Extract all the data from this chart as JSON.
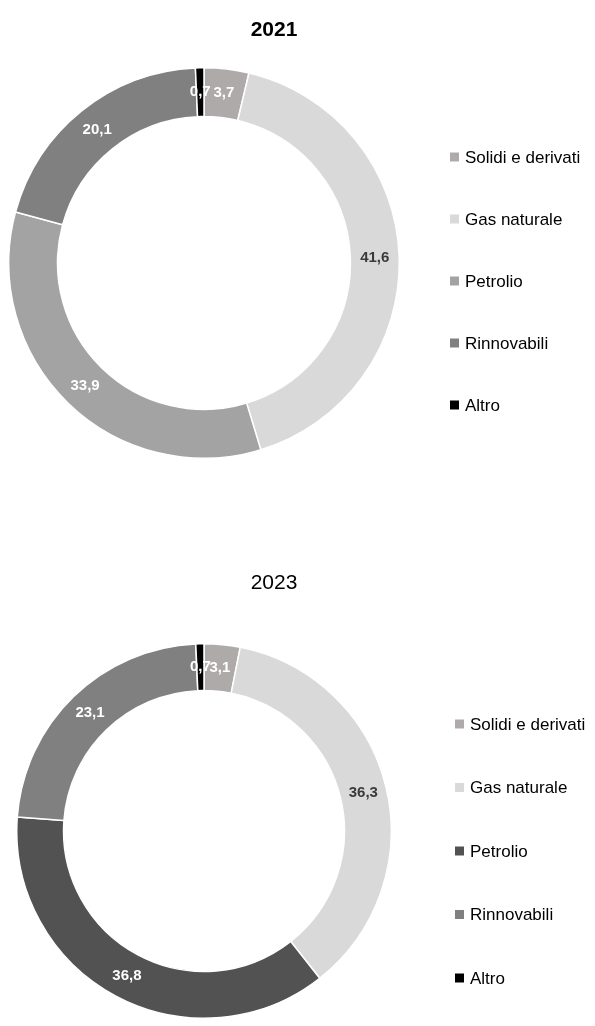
{
  "chart_data": [
    {
      "type": "donut",
      "title": "2021",
      "categories": [
        "Solidi e derivati",
        "Gas naturale",
        "Petrolio",
        "Rinnovabili",
        "Altro"
      ],
      "values": [
        3.7,
        41.6,
        33.9,
        20.1,
        0.7
      ],
      "colors": [
        "#aeaaaa",
        "#d9d9d9",
        "#a3a3a3",
        "#808080",
        "#000000"
      ],
      "value_labels": [
        "3,7",
        "41,6",
        "33,9",
        "20,1",
        "0,7"
      ],
      "legend": "right"
    },
    {
      "type": "donut",
      "title": "2023",
      "categories": [
        "Solidi e derivati",
        "Gas naturale",
        "Petrolio",
        "Rinnovabili",
        "Altro"
      ],
      "values": [
        3.1,
        36.3,
        36.8,
        23.1,
        0.7
      ],
      "colors": [
        "#aeaaaa",
        "#d9d9d9",
        "#525252",
        "#808080",
        "#000000"
      ],
      "value_labels": [
        "3,1",
        "36,3",
        "36,8",
        "23,1",
        "0,7"
      ],
      "legend": "right"
    }
  ]
}
